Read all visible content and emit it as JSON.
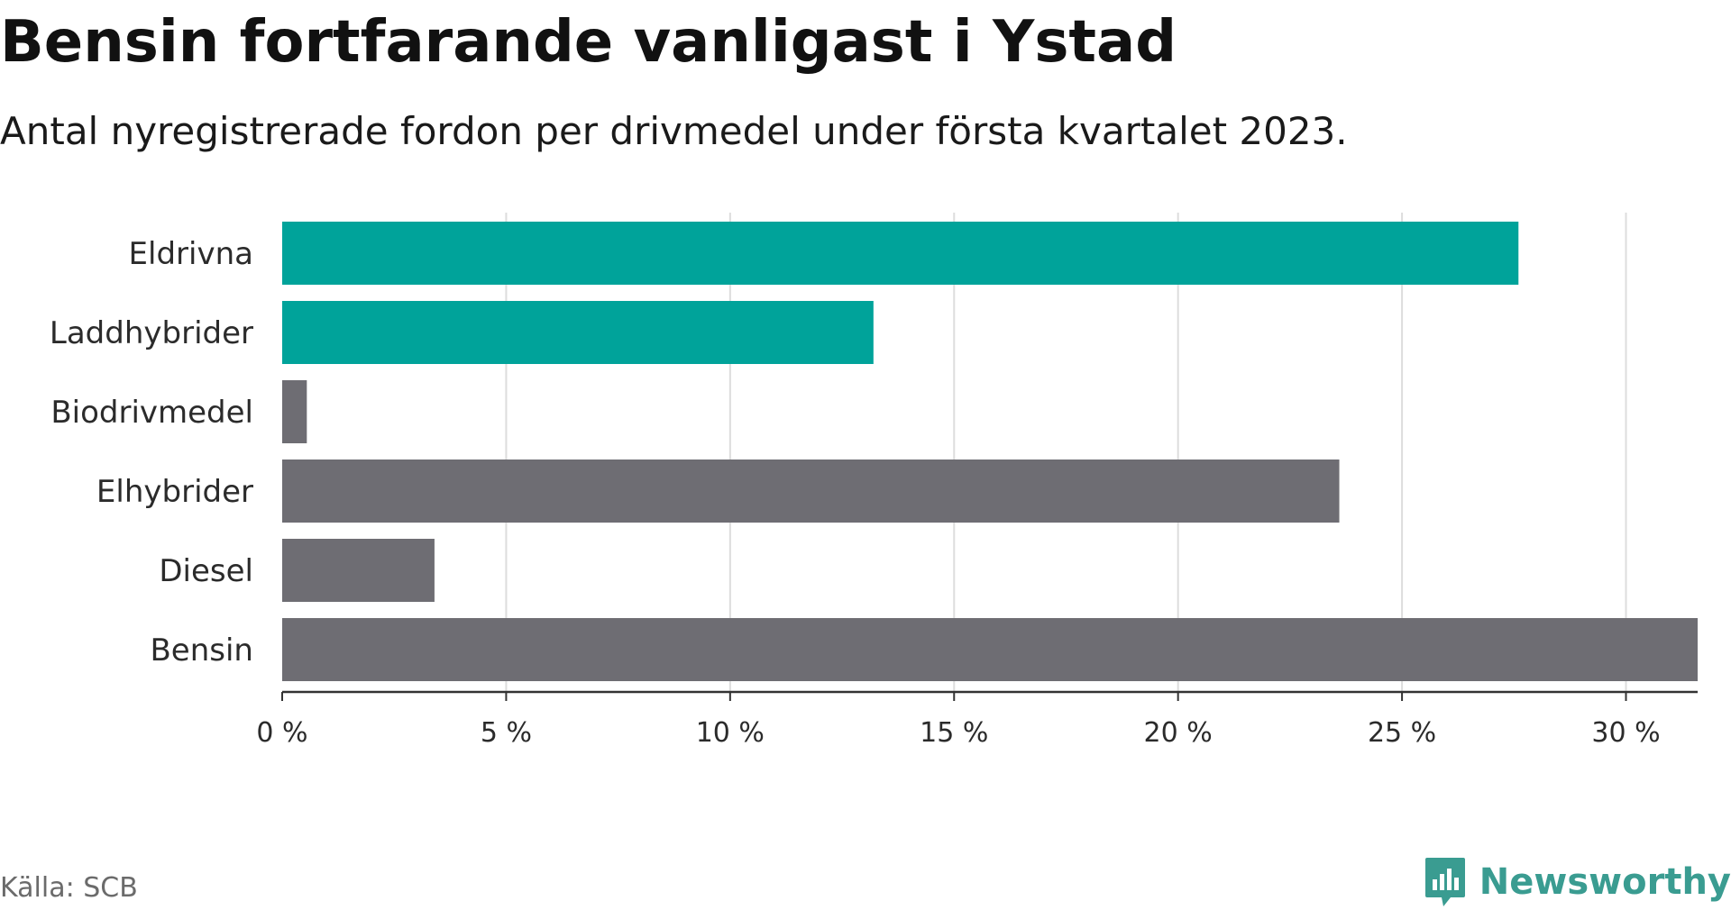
{
  "title": "Bensin fortfarande vanligast i Ystad",
  "subtitle": "Antal nyregistrerade fordon per drivmedel under första kvartalet 2023.",
  "source": "Källa: SCB",
  "brand": {
    "name": "Newsworthy",
    "logo_icon": "bar-chart-speech-bubble-icon",
    "color": "#3a9c91"
  },
  "colors": {
    "highlight": "#00a39a",
    "default": "#6e6d73",
    "grid": "#dddddd",
    "axis": "#333333"
  },
  "chart_data": {
    "type": "bar",
    "orientation": "horizontal",
    "categories": [
      "Eldrivna",
      "Laddhybrider",
      "Biodrivmedel",
      "Elhybrider",
      "Diesel",
      "Bensin"
    ],
    "values": [
      27.6,
      13.2,
      0.55,
      23.6,
      3.4,
      31.6
    ],
    "highlighted": [
      true,
      true,
      false,
      false,
      false,
      false
    ],
    "unit": "%",
    "xlim": [
      0,
      31.6
    ],
    "xticks": [
      0,
      5,
      10,
      15,
      20,
      25,
      30
    ],
    "xtick_labels": [
      "0 %",
      "5 %",
      "10 %",
      "15 %",
      "20 %",
      "25 %",
      "30 %"
    ],
    "grid": "vertical",
    "legend": "none"
  }
}
